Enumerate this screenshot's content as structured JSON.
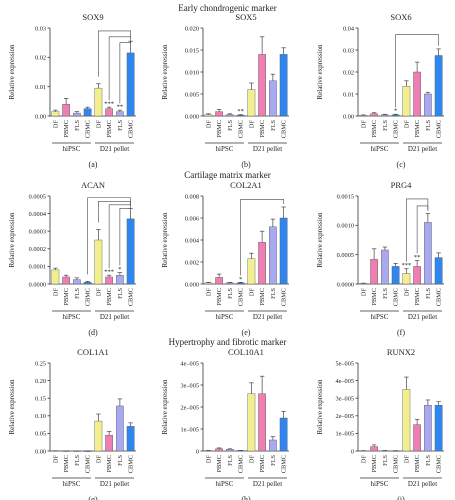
{
  "sections": [
    "Early chondrogenic marker",
    "Cartilage matrix marker",
    "Hypertrophy and fibrotic marker"
  ],
  "colors": {
    "DF": "#f3ef8f",
    "PBMC": "#ee7fb3",
    "FLS": "#a9a9f2",
    "CBMC": "#2f86f0"
  },
  "chart_data": [
    {
      "type": "bar",
      "panel_label": "(a)",
      "title": "SOX9",
      "ylabel": "Relative expression",
      "categories": [
        "DF",
        "PBMC",
        "FLS",
        "CBMC",
        "DF",
        "PBMC",
        "FLS",
        "CBMC"
      ],
      "groups": [
        "hiPSC",
        "D21 pellet"
      ],
      "values": [
        0.0015,
        0.004,
        0.001,
        0.0025,
        0.0095,
        0.0025,
        0.0015,
        0.0215
      ],
      "errors": [
        0.0005,
        0.002,
        0.0005,
        0.0005,
        0.0015,
        0.0005,
        0.0005,
        0.004
      ],
      "ylim": [
        0,
        0.03
      ],
      "yticks": [
        "0.00",
        "0.01",
        "0.02",
        "0.03"
      ],
      "annotations": [
        "",
        "",
        "",
        "",
        "",
        "***",
        "**",
        ""
      ]
    },
    {
      "type": "bar",
      "panel_label": "(b)",
      "title": "SOX5",
      "ylabel": "Relative expression",
      "categories": [
        "DF",
        "PBMC",
        "FLS",
        "CBMC",
        "DF",
        "PBMC",
        "FLS",
        "CBMC"
      ],
      "groups": [
        "hiPSC",
        "D21 pellet"
      ],
      "values": [
        0.0003,
        0.001,
        0.0003,
        0.0002,
        0.006,
        0.014,
        0.008,
        0.014
      ],
      "errors": [
        0.0002,
        0.0005,
        0.0002,
        0.0001,
        0.0015,
        0.004,
        0.0015,
        0.0015
      ],
      "ylim": [
        0,
        0.02
      ],
      "yticks": [
        "0.000",
        "0.005",
        "0.010",
        "0.015",
        "0.020"
      ],
      "annotations": [
        "",
        "",
        "",
        "**",
        "",
        "",
        "",
        ""
      ]
    },
    {
      "type": "bar",
      "panel_label": "(c)",
      "title": "SOX6",
      "ylabel": "Relative expression",
      "categories": [
        "DF",
        "PBMC",
        "FLS",
        "CBMC",
        "DF",
        "PBMC",
        "FLS",
        "CBMC"
      ],
      "groups": [
        "hiPSC",
        "D21 pellet"
      ],
      "values": [
        0.0003,
        0.001,
        0.0005,
        0.0005,
        0.0135,
        0.02,
        0.01,
        0.0275
      ],
      "errors": [
        0.0002,
        0.0005,
        0.0003,
        0.0003,
        0.0025,
        0.0045,
        0.0008,
        0.003
      ],
      "ylim": [
        0,
        0.04
      ],
      "yticks": [
        "0.00",
        "0.01",
        "0.02",
        "0.03",
        "0.04"
      ],
      "annotations": [
        "",
        "",
        "",
        "*",
        "",
        "",
        "",
        ""
      ]
    },
    {
      "type": "bar",
      "panel_label": "(d)",
      "title": "ACAN",
      "ylabel": "Relative expression",
      "categories": [
        "DF",
        "PBMC",
        "FLS",
        "CBMC",
        "DF",
        "PBMC",
        "FLS",
        "CBMC"
      ],
      "groups": [
        "hiPSC",
        "D21 pellet"
      ],
      "values": [
        8e-05,
        4e-05,
        2.5e-05,
        1e-05,
        0.00025,
        4e-05,
        5e-05,
        0.00037
      ],
      "errors": [
        1e-05,
        1e-05,
        1e-05,
        5e-06,
        6e-05,
        1e-05,
        1.5e-05,
        6e-05
      ],
      "ylim": [
        0,
        0.0005
      ],
      "yticks": [
        "0.0000",
        "0.0001",
        "0.0002",
        "0.0003",
        "0.0004",
        "0.0005"
      ],
      "annotations": [
        "",
        "",
        "",
        "",
        "",
        "***",
        "*",
        ""
      ]
    },
    {
      "type": "bar",
      "panel_label": "(e)",
      "title": "COL2A1",
      "ylabel": "Relative expression",
      "categories": [
        "DF",
        "PBMC",
        "FLS",
        "CBMC",
        "DF",
        "PBMC",
        "FLS",
        "CBMC"
      ],
      "groups": [
        "hiPSC",
        "D21 pellet"
      ],
      "values": [
        0.0001,
        0.0006,
        0.0001,
        0.0001,
        0.0023,
        0.0038,
        0.0052,
        0.006
      ],
      "errors": [
        5e-05,
        0.0003,
        5e-05,
        5e-05,
        0.0005,
        0.001,
        0.0007,
        0.001
      ],
      "ylim": [
        0,
        0.008
      ],
      "yticks": [
        "0.000",
        "0.002",
        "0.004",
        "0.006",
        "0.008"
      ],
      "annotations": [
        "",
        "",
        "",
        "*",
        "",
        "",
        "",
        ""
      ]
    },
    {
      "type": "bar",
      "panel_label": "(f)",
      "title": "PRG4",
      "ylabel": "Relative expression",
      "categories": [
        "DF",
        "PBMC",
        "FLS",
        "CBMC",
        "DF",
        "PBMC",
        "FLS",
        "CBMC"
      ],
      "groups": [
        "hiPSC",
        "D21 pellet"
      ],
      "values": [
        1e-05,
        0.00042,
        0.00058,
        0.0003,
        0.00018,
        0.0003,
        0.00105,
        0.00045
      ],
      "errors": [
        5e-06,
        0.00018,
        5e-05,
        5e-05,
        8e-05,
        0.0001,
        0.00015,
        8e-05
      ],
      "ylim": [
        0,
        0.0015
      ],
      "yticks": [
        "0.0000",
        "0.0005",
        "0.0010",
        "0.0015"
      ],
      "annotations": [
        "",
        "",
        "",
        "",
        "***",
        "**",
        "",
        ""
      ]
    },
    {
      "type": "bar",
      "panel_label": "(g)",
      "title": "COL1A1",
      "ylabel": "Relative expression",
      "categories": [
        "DF",
        "PBMC",
        "FLS",
        "CBMC",
        "DF",
        "PBMC",
        "FLS",
        "CBMC"
      ],
      "groups": [
        "hiPSC",
        "D21 pellet"
      ],
      "values": [
        0.0005,
        0.0002,
        0.0002,
        0.0001,
        0.085,
        0.045,
        0.128,
        0.07
      ],
      "errors": [
        0.0002,
        0.0001,
        0.0001,
        0.0001,
        0.02,
        0.01,
        0.02,
        0.01
      ],
      "ylim": [
        0,
        0.25
      ],
      "yticks": [
        "0.00",
        "0.05",
        "0.10",
        "0.15",
        "0.20",
        "0.25"
      ],
      "annotations": [
        "",
        "",
        "",
        "",
        "",
        "",
        "",
        ""
      ]
    },
    {
      "type": "bar",
      "panel_label": "(h)",
      "title": "COL10A1",
      "ylabel": "Relative expression",
      "categories": [
        "DF",
        "PBMC",
        "FLS",
        "CBMC",
        "DF",
        "PBMC",
        "FLS",
        "CBMC"
      ],
      "groups": [
        "hiPSC",
        "D21 pellet"
      ],
      "values": [
        2e-07,
        1e-06,
        8e-07,
        2e-07,
        2.6e-05,
        2.6e-05,
        5e-06,
        1.5e-05
      ],
      "errors": [
        1e-07,
        4e-07,
        2e-07,
        1e-07,
        5e-06,
        8e-06,
        1.5e-06,
        3e-06
      ],
      "ylim": [
        0,
        4e-05
      ],
      "yticks": [
        "0",
        "1e–005",
        "2e–005",
        "3e–005",
        "4e–005"
      ],
      "annotations": [
        "",
        "",
        "",
        "",
        "",
        "",
        "",
        ""
      ]
    },
    {
      "type": "bar",
      "panel_label": "(i)",
      "title": "RUNX2",
      "ylabel": "Relative expression",
      "categories": [
        "DF",
        "PBMC",
        "FLS",
        "CBMC",
        "DF",
        "PBMC",
        "FLS",
        "CBMC"
      ],
      "groups": [
        "hiPSC",
        "D21 pellet"
      ],
      "values": [
        1e-07,
        2.5e-06,
        2e-07,
        1e-07,
        3.5e-05,
        1.5e-05,
        2.6e-05,
        2.6e-05
      ],
      "errors": [
        1e-07,
        1e-06,
        1e-07,
        1e-07,
        7e-06,
        3e-06,
        3e-06,
        2e-06
      ],
      "ylim": [
        0,
        5e-05
      ],
      "yticks": [
        "0",
        "1e–005",
        "2e–005",
        "3e–005",
        "4e–005",
        "5e–005"
      ],
      "annotations": [
        "",
        "",
        "",
        "",
        "",
        "",
        "",
        ""
      ]
    }
  ]
}
